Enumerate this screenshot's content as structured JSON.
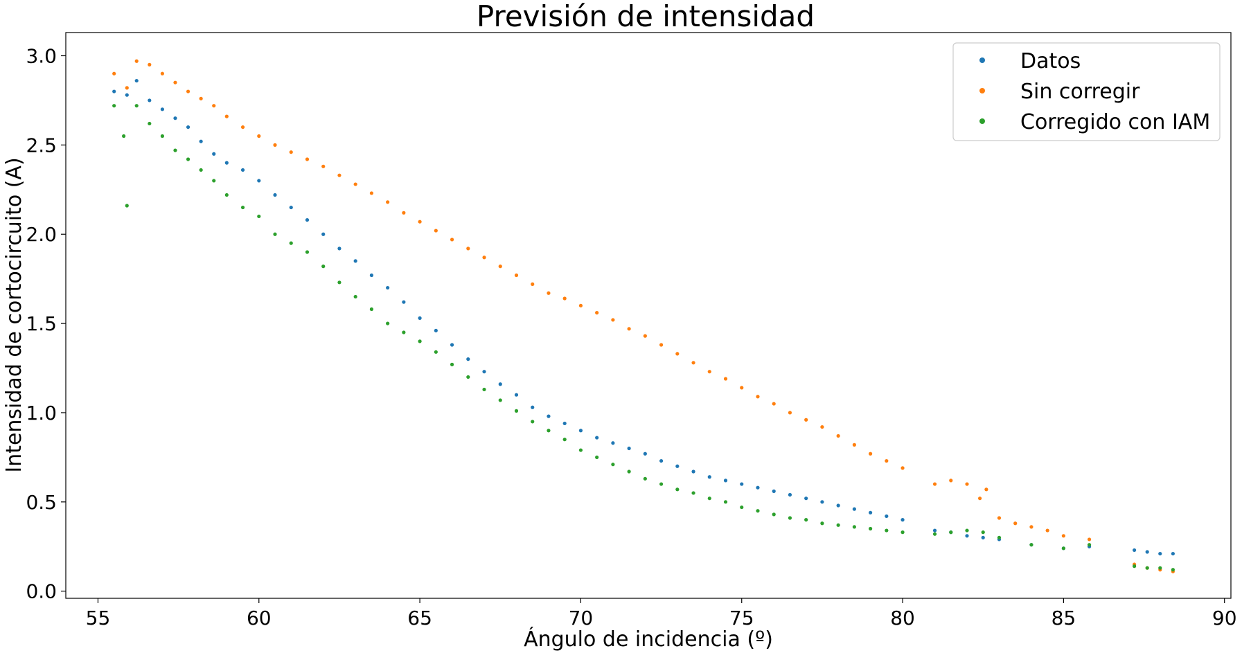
{
  "chart_data": {
    "type": "scatter",
    "title": "Previsión de intensidad",
    "xlabel": "Ángulo de incidencia (º)",
    "ylabel": "Intensidad de cortocircuito (A)",
    "xlim": [
      54,
      90.2
    ],
    "ylim": [
      -0.04,
      3.13
    ],
    "xticks": [
      55,
      60,
      65,
      70,
      75,
      80,
      85,
      90
    ],
    "yticks": [
      0.0,
      0.5,
      1.0,
      1.5,
      2.0,
      2.5,
      3.0
    ],
    "xtick_labels": [
      "55",
      "60",
      "65",
      "70",
      "75",
      "80",
      "85",
      "90"
    ],
    "ytick_labels": [
      "0.0",
      "0.5",
      "1.0",
      "1.5",
      "2.0",
      "2.5",
      "3.0"
    ],
    "grid": false,
    "legend_position": "top-right",
    "series": [
      {
        "name": "Datos",
        "color": "#1f77b4",
        "points": [
          [
            55.5,
            2.8
          ],
          [
            55.9,
            2.78
          ],
          [
            56.2,
            2.86
          ],
          [
            56.6,
            2.75
          ],
          [
            57.0,
            2.7
          ],
          [
            57.4,
            2.65
          ],
          [
            57.8,
            2.6
          ],
          [
            58.2,
            2.52
          ],
          [
            58.6,
            2.45
          ],
          [
            59.0,
            2.4
          ],
          [
            59.5,
            2.36
          ],
          [
            60.0,
            2.3
          ],
          [
            60.5,
            2.22
          ],
          [
            61.0,
            2.15
          ],
          [
            61.5,
            2.08
          ],
          [
            62.0,
            2.0
          ],
          [
            62.5,
            1.92
          ],
          [
            63.0,
            1.85
          ],
          [
            63.5,
            1.77
          ],
          [
            64.0,
            1.7
          ],
          [
            64.5,
            1.62
          ],
          [
            65.0,
            1.53
          ],
          [
            65.5,
            1.46
          ],
          [
            66.0,
            1.38
          ],
          [
            66.5,
            1.3
          ],
          [
            67.0,
            1.23
          ],
          [
            67.5,
            1.16
          ],
          [
            68.0,
            1.1
          ],
          [
            68.5,
            1.03
          ],
          [
            69.0,
            0.98
          ],
          [
            69.5,
            0.94
          ],
          [
            70.0,
            0.9
          ],
          [
            70.5,
            0.86
          ],
          [
            71.0,
            0.83
          ],
          [
            71.5,
            0.8
          ],
          [
            72.0,
            0.77
          ],
          [
            72.5,
            0.73
          ],
          [
            73.0,
            0.7
          ],
          [
            73.5,
            0.67
          ],
          [
            74.0,
            0.64
          ],
          [
            74.5,
            0.62
          ],
          [
            75.0,
            0.6
          ],
          [
            75.5,
            0.58
          ],
          [
            76.0,
            0.56
          ],
          [
            76.5,
            0.54
          ],
          [
            77.0,
            0.52
          ],
          [
            77.5,
            0.5
          ],
          [
            78.0,
            0.48
          ],
          [
            78.5,
            0.46
          ],
          [
            79.0,
            0.44
          ],
          [
            79.5,
            0.42
          ],
          [
            80.0,
            0.4
          ],
          [
            81.0,
            0.34
          ],
          [
            81.5,
            0.33
          ],
          [
            82.0,
            0.31
          ],
          [
            82.5,
            0.3
          ],
          [
            83.0,
            0.29
          ],
          [
            84.0,
            0.26
          ],
          [
            85.0,
            0.24
          ],
          [
            85.8,
            0.25
          ],
          [
            87.2,
            0.23
          ],
          [
            87.6,
            0.22
          ],
          [
            88.0,
            0.21
          ],
          [
            88.4,
            0.21
          ]
        ]
      },
      {
        "name": "Sin corregir",
        "color": "#ff7f0e",
        "points": [
          [
            55.5,
            2.9
          ],
          [
            55.9,
            2.82
          ],
          [
            56.2,
            2.97
          ],
          [
            56.6,
            2.95
          ],
          [
            57.0,
            2.9
          ],
          [
            57.4,
            2.85
          ],
          [
            57.8,
            2.8
          ],
          [
            58.2,
            2.76
          ],
          [
            58.6,
            2.72
          ],
          [
            59.0,
            2.66
          ],
          [
            59.5,
            2.6
          ],
          [
            60.0,
            2.55
          ],
          [
            60.5,
            2.5
          ],
          [
            61.0,
            2.46
          ],
          [
            61.5,
            2.42
          ],
          [
            62.0,
            2.38
          ],
          [
            62.5,
            2.33
          ],
          [
            63.0,
            2.28
          ],
          [
            63.5,
            2.23
          ],
          [
            64.0,
            2.18
          ],
          [
            64.5,
            2.12
          ],
          [
            65.0,
            2.07
          ],
          [
            65.5,
            2.02
          ],
          [
            66.0,
            1.97
          ],
          [
            66.5,
            1.92
          ],
          [
            67.0,
            1.87
          ],
          [
            67.5,
            1.82
          ],
          [
            68.0,
            1.77
          ],
          [
            68.5,
            1.72
          ],
          [
            69.0,
            1.67
          ],
          [
            69.5,
            1.64
          ],
          [
            70.0,
            1.6
          ],
          [
            70.5,
            1.56
          ],
          [
            71.0,
            1.52
          ],
          [
            71.5,
            1.47
          ],
          [
            72.0,
            1.43
          ],
          [
            72.5,
            1.38
          ],
          [
            73.0,
            1.33
          ],
          [
            73.5,
            1.28
          ],
          [
            74.0,
            1.23
          ],
          [
            74.5,
            1.19
          ],
          [
            75.0,
            1.14
          ],
          [
            75.5,
            1.09
          ],
          [
            76.0,
            1.05
          ],
          [
            76.5,
            1.0
          ],
          [
            77.0,
            0.96
          ],
          [
            77.5,
            0.92
          ],
          [
            78.0,
            0.87
          ],
          [
            78.5,
            0.82
          ],
          [
            79.0,
            0.77
          ],
          [
            79.5,
            0.73
          ],
          [
            80.0,
            0.69
          ],
          [
            81.0,
            0.6
          ],
          [
            81.5,
            0.62
          ],
          [
            82.0,
            0.6
          ],
          [
            82.4,
            0.52
          ],
          [
            82.6,
            0.57
          ],
          [
            83.0,
            0.41
          ],
          [
            83.5,
            0.38
          ],
          [
            84.0,
            0.36
          ],
          [
            84.5,
            0.34
          ],
          [
            85.0,
            0.31
          ],
          [
            85.8,
            0.29
          ],
          [
            87.2,
            0.15
          ],
          [
            87.6,
            0.13
          ],
          [
            88.0,
            0.12
          ],
          [
            88.4,
            0.11
          ]
        ]
      },
      {
        "name": "Corregido con IAM",
        "color": "#2ca02c",
        "points": [
          [
            55.5,
            2.72
          ],
          [
            55.8,
            2.55
          ],
          [
            55.9,
            2.16
          ],
          [
            56.2,
            2.72
          ],
          [
            56.6,
            2.62
          ],
          [
            57.0,
            2.55
          ],
          [
            57.4,
            2.47
          ],
          [
            57.8,
            2.42
          ],
          [
            58.2,
            2.36
          ],
          [
            58.6,
            2.3
          ],
          [
            59.0,
            2.22
          ],
          [
            59.5,
            2.15
          ],
          [
            60.0,
            2.1
          ],
          [
            60.5,
            2.0
          ],
          [
            61.0,
            1.95
          ],
          [
            61.5,
            1.9
          ],
          [
            62.0,
            1.82
          ],
          [
            62.5,
            1.73
          ],
          [
            63.0,
            1.65
          ],
          [
            63.5,
            1.58
          ],
          [
            64.0,
            1.5
          ],
          [
            64.5,
            1.45
          ],
          [
            65.0,
            1.4
          ],
          [
            65.5,
            1.34
          ],
          [
            66.0,
            1.27
          ],
          [
            66.5,
            1.2
          ],
          [
            67.0,
            1.13
          ],
          [
            67.5,
            1.07
          ],
          [
            68.0,
            1.01
          ],
          [
            68.5,
            0.95
          ],
          [
            69.0,
            0.9
          ],
          [
            69.5,
            0.85
          ],
          [
            70.0,
            0.79
          ],
          [
            70.5,
            0.75
          ],
          [
            71.0,
            0.71
          ],
          [
            71.5,
            0.67
          ],
          [
            72.0,
            0.63
          ],
          [
            72.5,
            0.6
          ],
          [
            73.0,
            0.57
          ],
          [
            73.5,
            0.55
          ],
          [
            74.0,
            0.52
          ],
          [
            74.5,
            0.5
          ],
          [
            75.0,
            0.47
          ],
          [
            75.5,
            0.45
          ],
          [
            76.0,
            0.43
          ],
          [
            76.5,
            0.41
          ],
          [
            77.0,
            0.4
          ],
          [
            77.5,
            0.38
          ],
          [
            78.0,
            0.37
          ],
          [
            78.5,
            0.36
          ],
          [
            79.0,
            0.35
          ],
          [
            79.5,
            0.34
          ],
          [
            80.0,
            0.33
          ],
          [
            81.0,
            0.32
          ],
          [
            81.5,
            0.33
          ],
          [
            82.0,
            0.34
          ],
          [
            82.5,
            0.33
          ],
          [
            83.0,
            0.3
          ],
          [
            84.0,
            0.26
          ],
          [
            85.0,
            0.24
          ],
          [
            85.8,
            0.26
          ],
          [
            87.2,
            0.14
          ],
          [
            87.6,
            0.13
          ],
          [
            88.0,
            0.13
          ],
          [
            88.4,
            0.12
          ]
        ]
      }
    ]
  }
}
